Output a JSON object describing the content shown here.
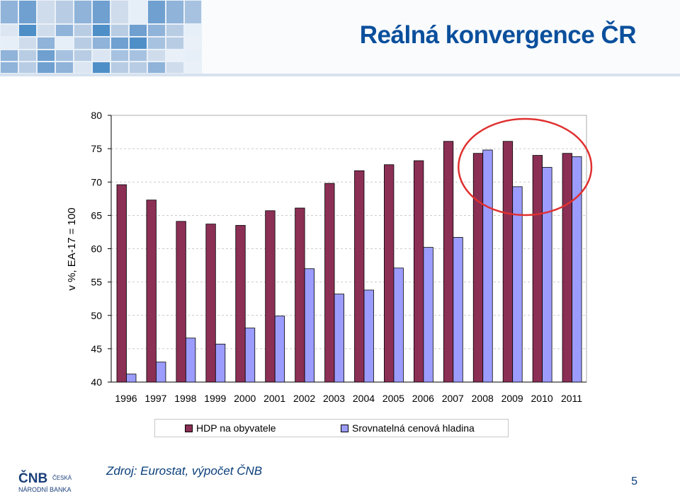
{
  "slide": {
    "title": "Reálná konvergence ČR",
    "source": "Zdroj: Eurostat, výpočet ČNB",
    "page_number": "5",
    "logo": {
      "line1": "ČESKÁ",
      "line2": "NÁRODNÍ BANKA"
    }
  },
  "colors": {
    "title": "#0a4f9c",
    "hdp": "#8b2f55",
    "ceny": "#9c9cff",
    "highlight_circle": "#e03030"
  },
  "chart_data": {
    "type": "bar",
    "categories": [
      "1996",
      "1997",
      "1998",
      "1999",
      "2000",
      "2001",
      "2002",
      "2003",
      "2004",
      "2005",
      "2006",
      "2007",
      "2008",
      "2009",
      "2010",
      "2011"
    ],
    "series": [
      {
        "name": "HDP na obyvatele",
        "values": [
          69.6,
          67.3,
          64.1,
          63.7,
          63.5,
          65.7,
          66.1,
          69.8,
          71.7,
          72.6,
          73.2,
          76.1,
          74.3,
          76.1,
          74.0,
          74.3
        ]
      },
      {
        "name": "Srovnatelná cenová hladina",
        "values": [
          41.2,
          43.0,
          46.6,
          45.7,
          48.1,
          49.9,
          57.0,
          53.2,
          53.8,
          57.1,
          60.2,
          61.7,
          74.8,
          69.3,
          72.2,
          73.8
        ]
      }
    ],
    "ylabel": "v %, EA-17 = 100",
    "ylim": [
      40,
      80
    ],
    "yticks": [
      40,
      45,
      50,
      55,
      60,
      65,
      70,
      75,
      80
    ],
    "grid": true,
    "legend": "bottom",
    "annotation": "red circle highlighting 2008–2011"
  }
}
